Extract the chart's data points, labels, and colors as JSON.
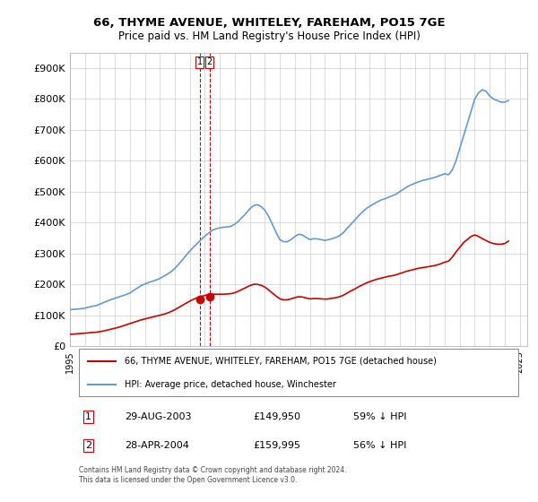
{
  "title": "66, THYME AVENUE, WHITELEY, FAREHAM, PO15 7GE",
  "subtitle": "Price paid vs. HM Land Registry's House Price Index (HPI)",
  "ylabel_ticks": [
    "£0",
    "£100K",
    "£200K",
    "£300K",
    "£400K",
    "£500K",
    "£600K",
    "£700K",
    "£800K",
    "£900K"
  ],
  "ytick_values": [
    0,
    100000,
    200000,
    300000,
    400000,
    500000,
    600000,
    700000,
    800000,
    900000
  ],
  "ylim": [
    0,
    950000
  ],
  "xlim_start": 1995.0,
  "xlim_end": 2025.5,
  "hpi_color": "#6699cc",
  "price_color": "#cc0000",
  "marker_color": "#cc0000",
  "vline_color": "#cc0000",
  "grid_color": "#cccccc",
  "bg_color": "#ffffff",
  "legend_label_price": "66, THYME AVENUE, WHITELEY, FAREHAM, PO15 7GE (detached house)",
  "legend_label_hpi": "HPI: Average price, detached house, Winchester",
  "transaction1_label": "1",
  "transaction1_date": "29-AUG-2003",
  "transaction1_price": "£149,950",
  "transaction1_hpi": "59% ↓ HPI",
  "transaction1_x": 2003.66,
  "transaction1_y": 149950,
  "transaction2_label": "2",
  "transaction2_date": "28-APR-2004",
  "transaction2_price": "£159,995",
  "transaction2_hpi": "56% ↓ HPI",
  "transaction2_x": 2004.32,
  "transaction2_y": 159995,
  "footnote": "Contains HM Land Registry data © Crown copyright and database right 2024.\nThis data is licensed under the Open Government Licence v3.0.",
  "hpi_x": [
    1995.0,
    1995.25,
    1995.5,
    1995.75,
    1996.0,
    1996.25,
    1996.5,
    1996.75,
    1997.0,
    1997.25,
    1997.5,
    1997.75,
    1998.0,
    1998.25,
    1998.5,
    1998.75,
    1999.0,
    1999.25,
    1999.5,
    1999.75,
    2000.0,
    2000.25,
    2000.5,
    2000.75,
    2001.0,
    2001.25,
    2001.5,
    2001.75,
    2002.0,
    2002.25,
    2002.5,
    2002.75,
    2003.0,
    2003.25,
    2003.5,
    2003.75,
    2004.0,
    2004.25,
    2004.5,
    2004.75,
    2005.0,
    2005.25,
    2005.5,
    2005.75,
    2006.0,
    2006.25,
    2006.5,
    2006.75,
    2007.0,
    2007.25,
    2007.5,
    2007.75,
    2008.0,
    2008.25,
    2008.5,
    2008.75,
    2009.0,
    2009.25,
    2009.5,
    2009.75,
    2010.0,
    2010.25,
    2010.5,
    2010.75,
    2011.0,
    2011.25,
    2011.5,
    2011.75,
    2012.0,
    2012.25,
    2012.5,
    2012.75,
    2013.0,
    2013.25,
    2013.5,
    2013.75,
    2014.0,
    2014.25,
    2014.5,
    2014.75,
    2015.0,
    2015.25,
    2015.5,
    2015.75,
    2016.0,
    2016.25,
    2016.5,
    2016.75,
    2017.0,
    2017.25,
    2017.5,
    2017.75,
    2018.0,
    2018.25,
    2018.5,
    2018.75,
    2019.0,
    2019.25,
    2019.5,
    2019.75,
    2020.0,
    2020.25,
    2020.5,
    2020.75,
    2021.0,
    2021.25,
    2021.5,
    2021.75,
    2022.0,
    2022.25,
    2022.5,
    2022.75,
    2023.0,
    2023.25,
    2023.5,
    2023.75,
    2024.0,
    2024.25
  ],
  "hpi_y": [
    118000,
    119000,
    120000,
    121000,
    123000,
    126000,
    129000,
    131000,
    136000,
    141000,
    146000,
    151000,
    155000,
    159000,
    163000,
    167000,
    172000,
    180000,
    188000,
    196000,
    201000,
    206000,
    210000,
    214000,
    219000,
    226000,
    233000,
    241000,
    252000,
    265000,
    279000,
    294000,
    308000,
    321000,
    333000,
    345000,
    356000,
    366000,
    375000,
    380000,
    383000,
    385000,
    386000,
    388000,
    395000,
    405000,
    418000,
    430000,
    445000,
    455000,
    458000,
    452000,
    440000,
    420000,
    395000,
    368000,
    345000,
    338000,
    338000,
    345000,
    355000,
    362000,
    360000,
    352000,
    345000,
    348000,
    347000,
    345000,
    342000,
    345000,
    348000,
    352000,
    358000,
    368000,
    382000,
    395000,
    408000,
    422000,
    434000,
    445000,
    453000,
    460000,
    467000,
    473000,
    477000,
    482000,
    487000,
    492000,
    500000,
    508000,
    516000,
    522000,
    527000,
    532000,
    536000,
    539000,
    542000,
    545000,
    549000,
    554000,
    558000,
    555000,
    570000,
    600000,
    640000,
    680000,
    720000,
    760000,
    800000,
    820000,
    830000,
    825000,
    810000,
    800000,
    795000,
    790000,
    790000,
    795000
  ],
  "price_x": [
    1995.0,
    1995.25,
    1995.5,
    1995.75,
    1996.0,
    1996.25,
    1996.5,
    1996.75,
    1997.0,
    1997.25,
    1997.5,
    1997.75,
    1998.0,
    1998.25,
    1998.5,
    1998.75,
    1999.0,
    1999.25,
    1999.5,
    1999.75,
    2000.0,
    2000.25,
    2000.5,
    2000.75,
    2001.0,
    2001.25,
    2001.5,
    2001.75,
    2002.0,
    2002.25,
    2002.5,
    2002.75,
    2003.0,
    2003.25,
    2003.5,
    2003.75,
    2004.0,
    2004.25,
    2004.5,
    2004.75,
    2005.0,
    2005.25,
    2005.5,
    2005.75,
    2006.0,
    2006.25,
    2006.5,
    2006.75,
    2007.0,
    2007.25,
    2007.5,
    2007.75,
    2008.0,
    2008.25,
    2008.5,
    2008.75,
    2009.0,
    2009.25,
    2009.5,
    2009.75,
    2010.0,
    2010.25,
    2010.5,
    2010.75,
    2011.0,
    2011.25,
    2011.5,
    2011.75,
    2012.0,
    2012.25,
    2012.5,
    2012.75,
    2013.0,
    2013.25,
    2013.5,
    2013.75,
    2014.0,
    2014.25,
    2014.5,
    2014.75,
    2015.0,
    2015.25,
    2015.5,
    2015.75,
    2016.0,
    2016.25,
    2016.5,
    2016.75,
    2017.0,
    2017.25,
    2017.5,
    2017.75,
    2018.0,
    2018.25,
    2018.5,
    2018.75,
    2019.0,
    2019.25,
    2019.5,
    2019.75,
    2020.0,
    2020.25,
    2020.5,
    2020.75,
    2021.0,
    2021.25,
    2021.5,
    2021.75,
    2022.0,
    2022.25,
    2022.5,
    2022.75,
    2023.0,
    2023.25,
    2023.5,
    2023.75,
    2024.0,
    2024.25
  ],
  "price_y": [
    38000,
    39000,
    40000,
    41000,
    42000,
    43000,
    44000,
    45000,
    47000,
    49000,
    52000,
    55000,
    58000,
    61000,
    65000,
    69000,
    73000,
    77000,
    81000,
    85000,
    88000,
    91000,
    94000,
    97000,
    100000,
    103000,
    107000,
    112000,
    118000,
    125000,
    132000,
    139000,
    146000,
    152000,
    157000,
    161000,
    164000,
    167000,
    168000,
    168000,
    168000,
    168000,
    169000,
    170000,
    173000,
    178000,
    184000,
    190000,
    196000,
    200000,
    200000,
    197000,
    191000,
    182000,
    172000,
    162000,
    153000,
    150000,
    150000,
    153000,
    157000,
    160000,
    159000,
    156000,
    153000,
    154000,
    154000,
    153000,
    152000,
    153000,
    155000,
    157000,
    160000,
    165000,
    172000,
    179000,
    185000,
    192000,
    198000,
    204000,
    209000,
    213000,
    217000,
    220000,
    223000,
    226000,
    228000,
    231000,
    235000,
    239000,
    243000,
    246000,
    249000,
    252000,
    254000,
    256000,
    258000,
    260000,
    263000,
    267000,
    272000,
    275000,
    288000,
    305000,
    320000,
    335000,
    345000,
    355000,
    360000,
    355000,
    348000,
    342000,
    336000,
    332000,
    330000,
    330000,
    332000,
    340000
  ]
}
